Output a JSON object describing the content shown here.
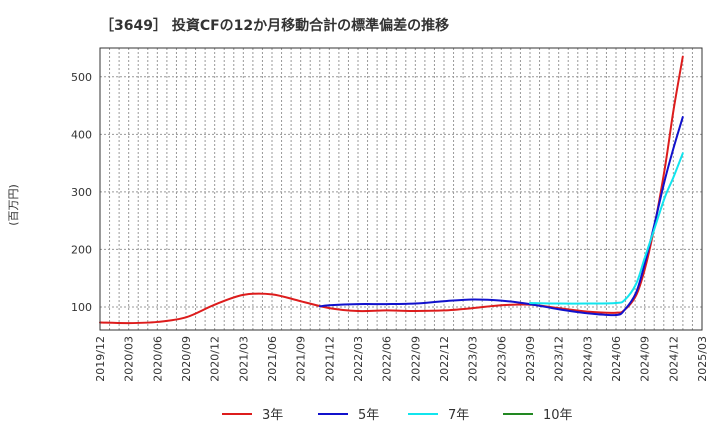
{
  "chart_data": {
    "type": "line",
    "title": "［3649］ 投資CFの12か月移動合計の標準偏差の推移",
    "ylabel": "(百万円)",
    "xlabel": "",
    "ylim": [
      60,
      550
    ],
    "y_ticks": [
      100,
      200,
      300,
      400,
      500
    ],
    "x_tick_labels": [
      "2019/12",
      "2020/03",
      "2020/06",
      "2020/09",
      "2020/12",
      "2021/03",
      "2021/06",
      "2021/09",
      "2021/12",
      "2022/03",
      "2022/06",
      "2022/09",
      "2022/12",
      "2023/03",
      "2023/06",
      "2023/09",
      "2023/12",
      "2024/03",
      "2024/06",
      "2024/09",
      "2024/12",
      "2025/03"
    ],
    "grid": true,
    "legend_position": "bottom",
    "series": [
      {
        "name": "3年",
        "color": "#dd1c1c",
        "points": [
          [
            0,
            73
          ],
          [
            1,
            72
          ],
          [
            2,
            74
          ],
          [
            3,
            82
          ],
          [
            4,
            104
          ],
          [
            5,
            121
          ],
          [
            6,
            122
          ],
          [
            7,
            110
          ],
          [
            8,
            98
          ],
          [
            9,
            93
          ],
          [
            10,
            94
          ],
          [
            11,
            93
          ],
          [
            12,
            94
          ],
          [
            13,
            98
          ],
          [
            14,
            103
          ],
          [
            15,
            104
          ],
          [
            16,
            98
          ],
          [
            17,
            92
          ],
          [
            18,
            90
          ],
          [
            18.3,
            95
          ],
          [
            18.7,
            120
          ],
          [
            19,
            165
          ],
          [
            19.3,
            230
          ],
          [
            19.7,
            340
          ],
          [
            20,
            440
          ],
          [
            20.33,
            535
          ]
        ]
      },
      {
        "name": "5年",
        "color": "#1111cc",
        "points": [
          [
            7.67,
            101
          ],
          [
            8,
            103
          ],
          [
            9,
            105
          ],
          [
            10,
            105
          ],
          [
            11,
            106
          ],
          [
            12,
            110
          ],
          [
            13,
            113
          ],
          [
            14,
            111
          ],
          [
            15,
            105
          ],
          [
            16,
            96
          ],
          [
            17,
            89
          ],
          [
            18,
            86
          ],
          [
            18.3,
            95
          ],
          [
            18.7,
            125
          ],
          [
            19,
            175
          ],
          [
            19.3,
            235
          ],
          [
            19.7,
            320
          ],
          [
            20,
            375
          ],
          [
            20.33,
            430
          ]
        ]
      },
      {
        "name": "7年",
        "color": "#11e5ee",
        "points": [
          [
            15,
            107
          ],
          [
            16,
            106
          ],
          [
            17,
            106
          ],
          [
            18,
            107
          ],
          [
            18.3,
            112
          ],
          [
            18.7,
            140
          ],
          [
            19,
            185
          ],
          [
            19.3,
            230
          ],
          [
            19.7,
            290
          ],
          [
            20,
            325
          ],
          [
            20.33,
            367
          ]
        ]
      },
      {
        "name": "10年",
        "color": "#228822",
        "points": []
      }
    ]
  }
}
